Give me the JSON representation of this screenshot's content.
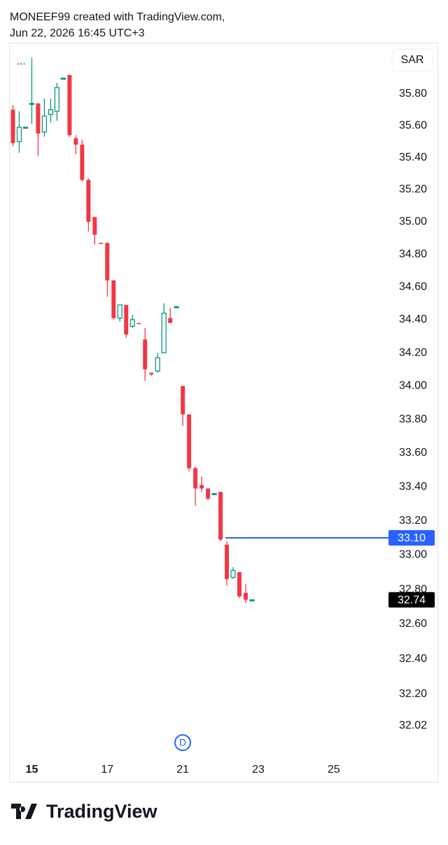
{
  "header": {
    "line1": "MONEEF99 created with TradingView.com,",
    "line2": "Jun 22, 2026 16:45 UTC+3"
  },
  "currency": "SAR",
  "menu": "...",
  "event_marker": "D",
  "footer": {
    "brand": "TradingView"
  },
  "chart_data": {
    "type": "candlestick",
    "log_scale": true,
    "up_color": "#089981",
    "down_color": "#f23645",
    "open": [
      35.7,
      35.5,
      35.59,
      35.74,
      35.74,
      35.56,
      35.67,
      35.69,
      35.9,
      35.92,
      35.52,
      35.48,
      35.26,
      35.03,
      34.87,
      34.87,
      34.64,
      34.41,
      34.49,
      34.36,
      34.38,
      34.28,
      34.08,
      34.09,
      34.2,
      34.41,
      34.48,
      34.0,
      33.83,
      33.51,
      33.41,
      33.39,
      33.36,
      33.37,
      33.06,
      32.87,
      32.9,
      32.78,
      32.74
    ],
    "high": [
      35.73,
      35.69,
      35.59,
      36.03,
      35.74,
      35.77,
      35.77,
      35.87,
      35.9,
      35.92,
      35.54,
      35.51,
      35.27,
      35.03,
      34.87,
      34.87,
      34.64,
      34.49,
      34.49,
      34.43,
      34.38,
      34.35,
      34.08,
      34.2,
      34.5,
      34.47,
      34.48,
      34.0,
      33.83,
      33.52,
      33.46,
      33.39,
      33.36,
      33.37,
      33.08,
      32.93,
      32.9,
      32.83,
      32.74
    ],
    "low": [
      35.47,
      35.43,
      35.59,
      35.61,
      35.41,
      35.53,
      35.62,
      35.63,
      35.9,
      35.53,
      35.42,
      35.25,
      34.94,
      34.86,
      34.87,
      34.54,
      34.4,
      34.39,
      34.29,
      34.35,
      34.38,
      34.03,
      34.06,
      34.08,
      34.2,
      34.38,
      34.48,
      33.76,
      33.49,
      33.29,
      33.37,
      33.32,
      33.36,
      33.08,
      32.82,
      32.86,
      32.75,
      32.72,
      32.74
    ],
    "close": [
      35.49,
      35.59,
      35.59,
      35.74,
      35.55,
      35.66,
      35.7,
      35.84,
      35.9,
      35.54,
      35.48,
      35.26,
      35.0,
      34.92,
      34.87,
      34.64,
      34.41,
      34.49,
      34.31,
      34.4,
      34.38,
      34.1,
      34.07,
      34.17,
      34.44,
      34.38,
      34.48,
      33.83,
      33.51,
      33.39,
      33.39,
      33.33,
      33.36,
      33.09,
      32.86,
      32.91,
      32.76,
      32.74,
      32.74
    ],
    "xlim": [
      -0.5,
      59.7
    ],
    "xticks": [
      {
        "value": 3,
        "label": "15"
      },
      {
        "value": 15,
        "label": "17"
      },
      {
        "value": 27,
        "label": "21"
      },
      {
        "value": 39,
        "label": "23"
      },
      {
        "value": 51,
        "label": "25"
      }
    ],
    "ylim": [
      31.81,
      36.12
    ],
    "yticks": [
      {
        "value": 32.02,
        "label": "32.02"
      },
      {
        "value": 32.2,
        "label": "32.20"
      },
      {
        "value": 32.4,
        "label": "32.40"
      },
      {
        "value": 32.6,
        "label": "32.60"
      },
      {
        "value": 32.8,
        "label": "32.80"
      },
      {
        "value": 33,
        "label": "33.00"
      },
      {
        "value": 33.2,
        "label": "33.20"
      },
      {
        "value": 33.4,
        "label": "33.40"
      },
      {
        "value": 33.6,
        "label": "33.60"
      },
      {
        "value": 33.8,
        "label": "33.80"
      },
      {
        "value": 34,
        "label": "34.00"
      },
      {
        "value": 34.2,
        "label": "34.20"
      },
      {
        "value": 34.4,
        "label": "34.40"
      },
      {
        "value": 34.6,
        "label": "34.60"
      },
      {
        "value": 34.8,
        "label": "34.80"
      },
      {
        "value": 35,
        "label": "35.00"
      },
      {
        "value": 35.2,
        "label": "35.20"
      },
      {
        "value": 35.4,
        "label": "35.40"
      },
      {
        "value": 35.6,
        "label": "35.60"
      },
      {
        "value": 35.8,
        "label": "35.80"
      }
    ],
    "price_lines": [
      {
        "value": 33.1,
        "label": "33.10",
        "color": "#2962ff"
      },
      {
        "value": 32.74,
        "color": "#000000"
      }
    ]
  }
}
